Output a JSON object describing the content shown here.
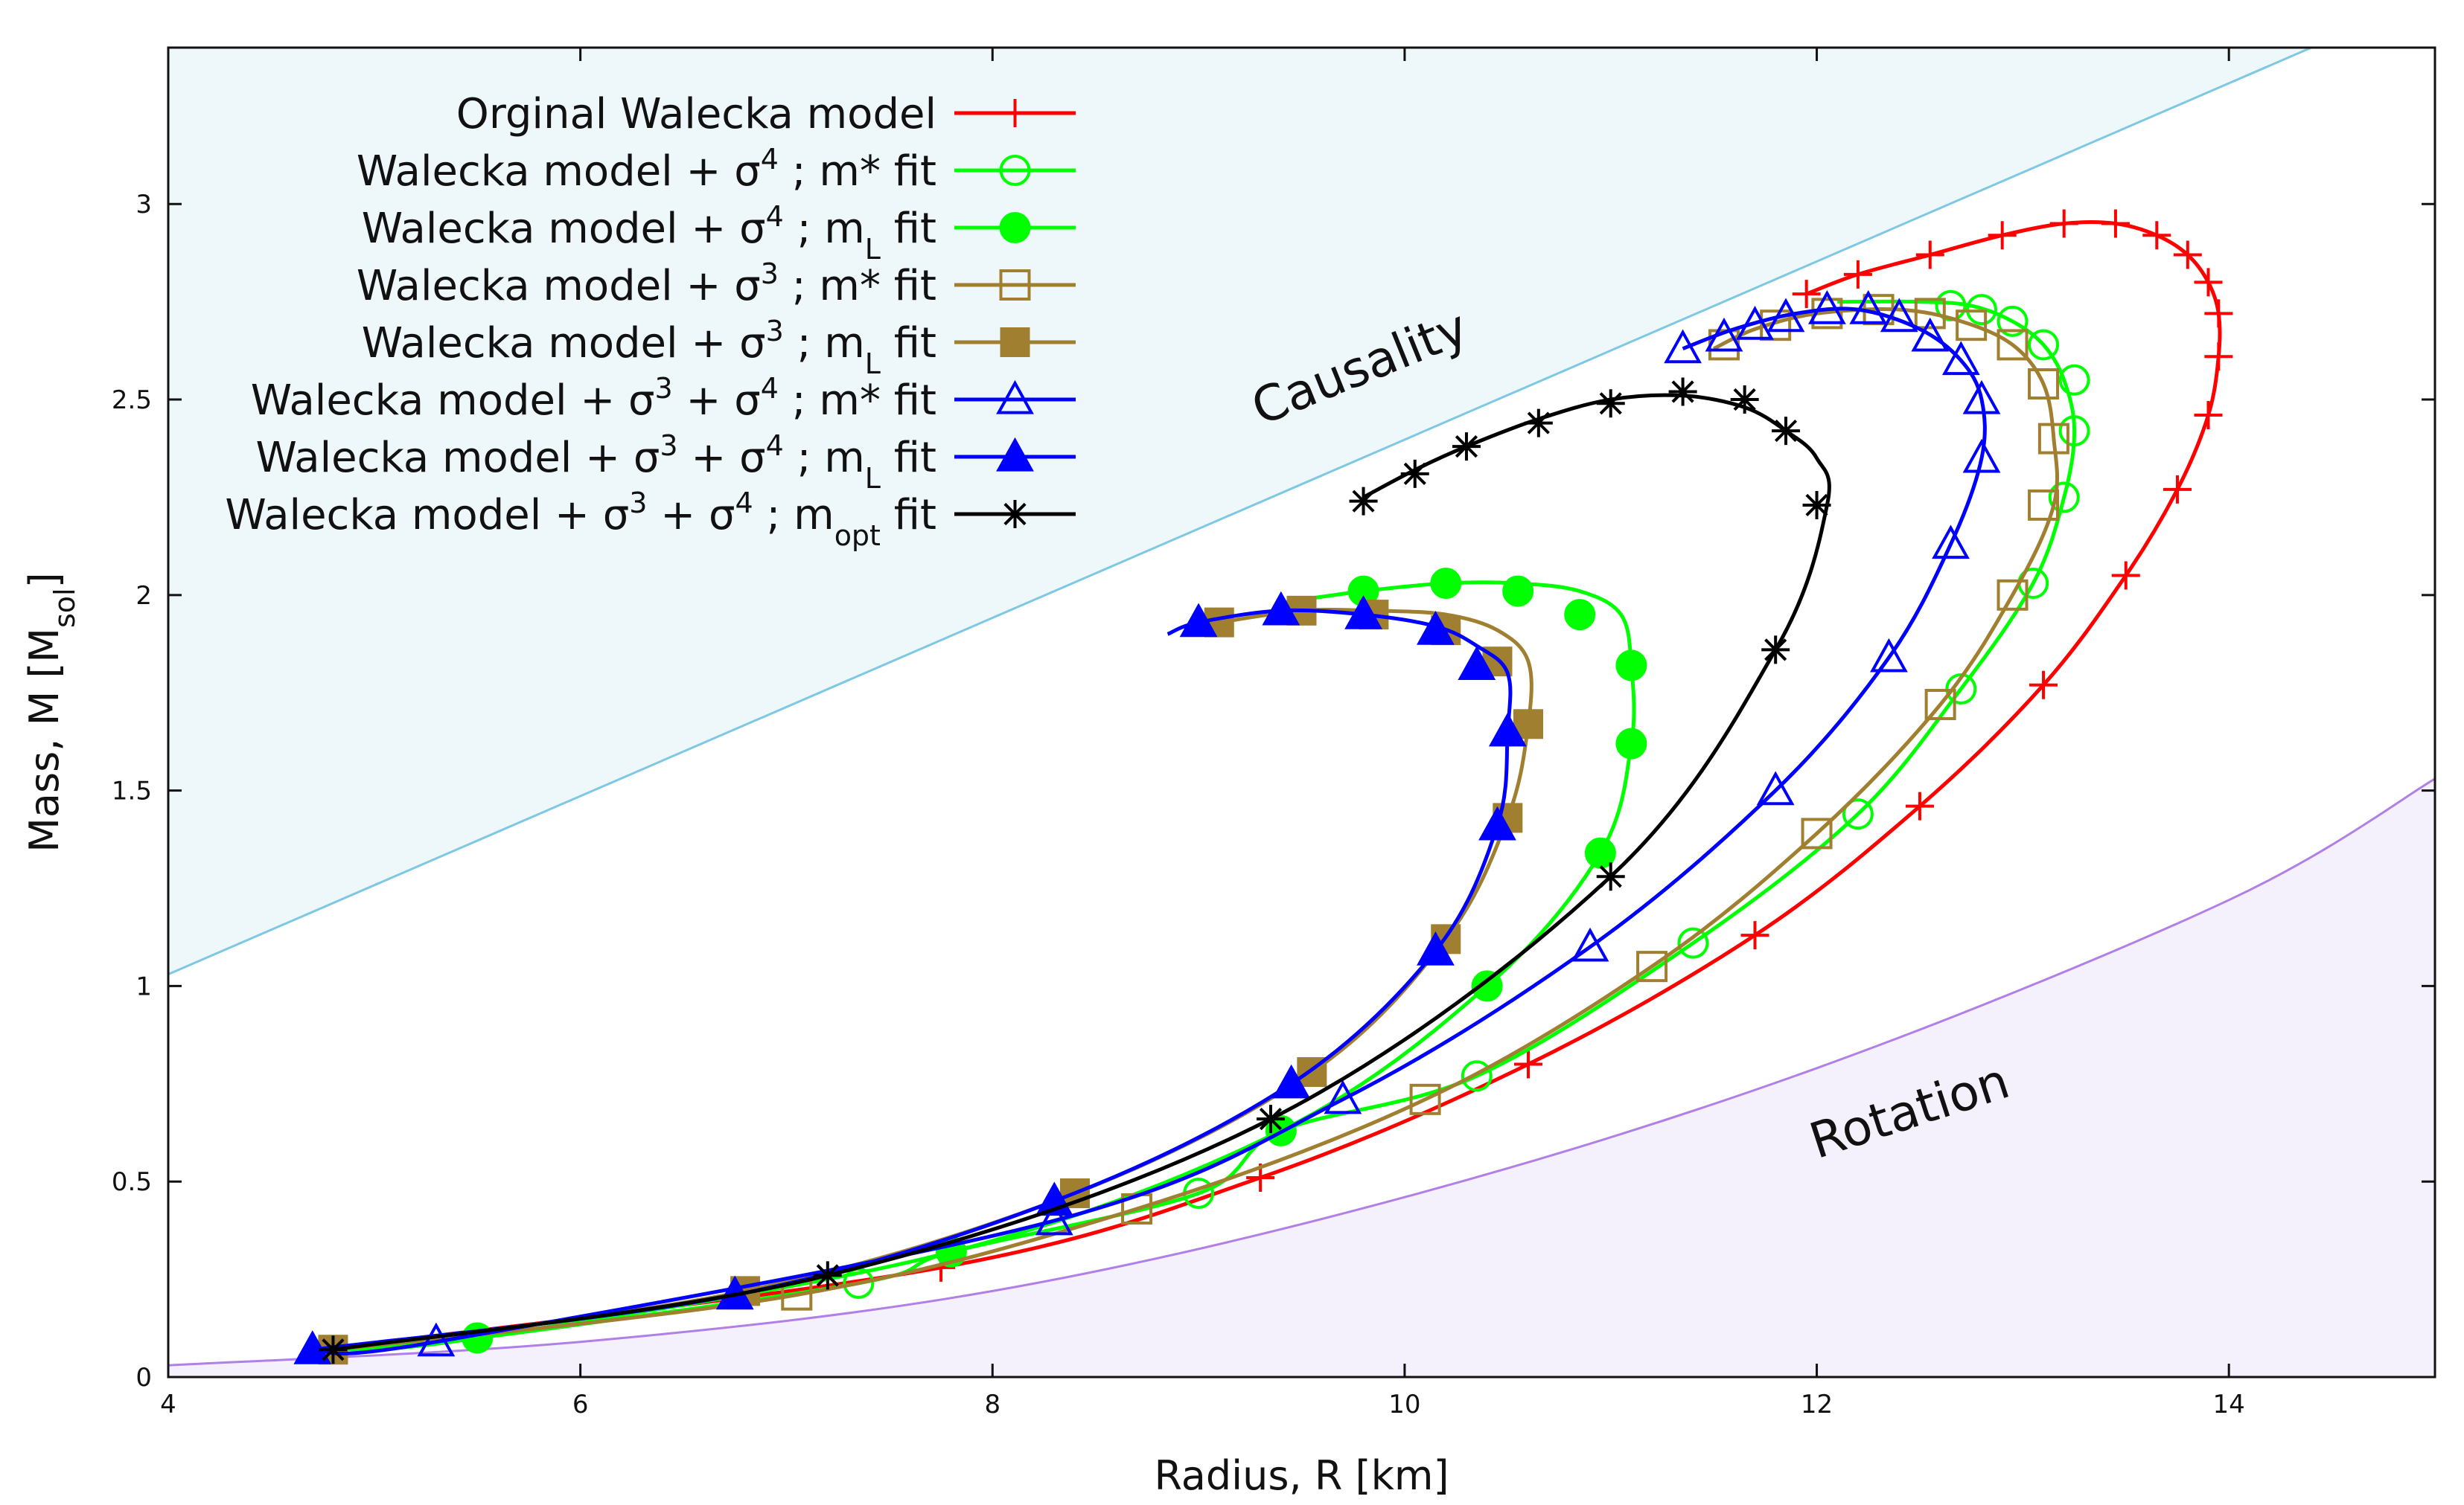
{
  "chart_data": {
    "type": "line",
    "xlabel": "Radius, R [km]",
    "ylabel_main": "Mass, M [M",
    "ylabel_sub": "sol",
    "ylabel_end": "]",
    "xlim": [
      4,
      15
    ],
    "ylim": [
      0,
      3.4
    ],
    "xticks": [
      4,
      6,
      8,
      10,
      12,
      14
    ],
    "yticks": [
      0,
      0.5,
      1,
      1.5,
      2,
      2.5,
      3
    ],
    "xtick_labels": [
      "4",
      "6",
      "8",
      "10",
      "12",
      "14"
    ],
    "ytick_labels": [
      "0",
      "0.5",
      "1",
      "1.5",
      "2",
      "2.5",
      "3"
    ],
    "grid": false,
    "legend_position": "top-left",
    "regions": [
      {
        "label": "Causality",
        "color": "#7ec8e3",
        "fill": "#eef8fb",
        "boundary": {
          "x": [
            4,
            14.4
          ],
          "y": [
            1.03,
            3.4
          ]
        }
      },
      {
        "label": "Rotation",
        "color": "#b07fe8",
        "fill": "#f4f0fc",
        "boundary": {
          "x": [
            4,
            6,
            8,
            10,
            12,
            14,
            15
          ],
          "y": [
            0.03,
            0.09,
            0.22,
            0.46,
            0.79,
            1.22,
            1.53
          ]
        }
      }
    ],
    "series": [
      {
        "name_parts": [
          "Orginal Walecka model"
        ],
        "color": "#ff0000",
        "marker": "plus",
        "x": [
          4.75,
          7.75,
          9.3,
          10.6,
          11.7,
          12.5,
          13.1,
          13.5,
          13.75,
          13.9,
          13.95,
          13.95,
          13.9,
          13.8,
          13.65,
          13.45,
          13.2,
          12.9,
          12.55,
          12.2,
          11.95
        ],
        "y": [
          0.07,
          0.28,
          0.51,
          0.8,
          1.13,
          1.46,
          1.77,
          2.05,
          2.27,
          2.46,
          2.61,
          2.72,
          2.8,
          2.87,
          2.92,
          2.95,
          2.95,
          2.92,
          2.87,
          2.82,
          2.77
        ]
      },
      {
        "name_parts": [
          "Walecka model + σ",
          "4",
          " ; m* fit"
        ],
        "color": "#00ff00",
        "marker": "circle-open",
        "x": [
          4.8,
          5.5,
          7.35,
          7.8,
          9.0,
          9.4,
          10.35,
          11.4,
          12.2,
          12.7,
          13.05,
          13.2,
          13.25,
          13.2,
          13.1,
          12.95,
          12.75,
          12.5,
          12.1
        ],
        "y": [
          0.07,
          0.1,
          0.24,
          0.32,
          0.47,
          0.63,
          0.77,
          1.11,
          1.44,
          1.76,
          2.03,
          2.25,
          2.42,
          2.55,
          2.64,
          2.7,
          2.74,
          2.75,
          2.75
        ],
        "markers_x": [
          7.35,
          9.0,
          10.35,
          11.4,
          12.2,
          12.7,
          13.05,
          13.2,
          13.25,
          13.25,
          13.1,
          12.95,
          12.8,
          12.65
        ],
        "markers_y": [
          0.24,
          0.47,
          0.77,
          1.11,
          1.44,
          1.76,
          2.03,
          2.25,
          2.42,
          2.55,
          2.64,
          2.7,
          2.73,
          2.74
        ]
      },
      {
        "name_parts": [
          "Walecka model + σ",
          "4",
          " ; m",
          "L",
          " fit"
        ],
        "color": "#00ff00",
        "marker": "circle-filled",
        "x": [
          4.8,
          5.5,
          7.8,
          9.4,
          10.4,
          10.95,
          11.1,
          11.1,
          11.05,
          10.85,
          10.55,
          10.2,
          9.8,
          9.4
        ],
        "y": [
          0.07,
          0.1,
          0.32,
          0.63,
          1.0,
          1.34,
          1.62,
          1.82,
          1.95,
          2.01,
          2.03,
          2.03,
          2.01,
          1.98
        ],
        "markers_x": [
          5.5,
          7.8,
          9.4,
          10.4,
          10.95,
          11.1,
          11.1,
          10.85,
          10.55,
          10.2,
          9.8
        ],
        "markers_y": [
          0.1,
          0.32,
          0.63,
          1.0,
          1.34,
          1.62,
          1.82,
          1.95,
          2.01,
          2.03,
          2.01
        ]
      },
      {
        "name_parts": [
          "Walecka model + σ",
          "3",
          " ; m* fit"
        ],
        "color": "#a08030",
        "marker": "square-open",
        "x": [
          4.8,
          7.05,
          8.7,
          10.1,
          11.2,
          12.0,
          12.6,
          12.95,
          13.15,
          13.15,
          13.1,
          12.95,
          12.7,
          12.4,
          12.0,
          11.7,
          11.5
        ],
        "y": [
          0.07,
          0.21,
          0.43,
          0.71,
          1.05,
          1.39,
          1.72,
          2.0,
          2.23,
          2.4,
          2.54,
          2.64,
          2.7,
          2.73,
          2.72,
          2.68,
          2.63
        ],
        "markers_x": [
          7.05,
          8.7,
          10.1,
          11.2,
          12.0,
          12.6,
          12.95,
          13.1,
          13.15,
          13.1,
          12.95,
          12.75,
          12.55,
          12.3,
          12.05,
          11.8,
          11.55
        ],
        "markers_y": [
          0.21,
          0.43,
          0.71,
          1.05,
          1.39,
          1.72,
          2.0,
          2.23,
          2.4,
          2.54,
          2.64,
          2.69,
          2.72,
          2.73,
          2.72,
          2.69,
          2.64
        ]
      },
      {
        "name_parts": [
          "Walecka model + σ",
          "3",
          " ; m",
          "L",
          " fit"
        ],
        "color": "#a08030",
        "marker": "square-filled",
        "x": [
          4.8,
          6.8,
          8.4,
          9.55,
          10.2,
          10.5,
          10.6,
          10.6,
          10.45,
          10.2,
          9.85,
          9.5,
          9.1
        ],
        "y": [
          0.07,
          0.22,
          0.47,
          0.78,
          1.12,
          1.43,
          1.67,
          1.83,
          1.91,
          1.95,
          1.96,
          1.96,
          1.93
        ],
        "markers_x": [
          4.8,
          6.8,
          8.4,
          9.55,
          10.2,
          10.5,
          10.6,
          10.45,
          10.2,
          9.85,
          9.5,
          9.1
        ],
        "markers_y": [
          0.07,
          0.22,
          0.47,
          0.78,
          1.12,
          1.43,
          1.67,
          1.83,
          1.91,
          1.95,
          1.96,
          1.93
        ]
      },
      {
        "name_parts": [
          "Walecka model + σ",
          "3",
          " + σ",
          "4",
          " ; m* fit"
        ],
        "color": "#0000ff",
        "marker": "triangle-open",
        "x": [
          4.7,
          5.3,
          8.3,
          9.7,
          10.9,
          11.8,
          12.35,
          12.65,
          12.8,
          12.8,
          12.7,
          12.5,
          12.2,
          11.9,
          11.6,
          11.35
        ],
        "y": [
          0.07,
          0.09,
          0.4,
          0.71,
          1.1,
          1.5,
          1.84,
          2.13,
          2.35,
          2.5,
          2.6,
          2.68,
          2.73,
          2.72,
          2.68,
          2.63
        ],
        "markers_x": [
          5.3,
          8.3,
          9.7,
          10.9,
          11.8,
          12.35,
          12.65,
          12.8,
          12.8,
          12.7,
          12.55,
          12.4,
          12.25,
          12.05,
          11.85,
          11.7,
          11.55,
          11.35
        ],
        "markers_y": [
          0.09,
          0.4,
          0.71,
          1.1,
          1.5,
          1.84,
          2.13,
          2.35,
          2.5,
          2.6,
          2.66,
          2.71,
          2.73,
          2.73,
          2.71,
          2.69,
          2.66,
          2.63
        ]
      },
      {
        "name_parts": [
          "Walecka model + σ",
          "3",
          " + σ",
          "4",
          " ; m",
          "L",
          " fit"
        ],
        "color": "#0000ff",
        "marker": "triangle-filled",
        "x": [
          4.7,
          6.75,
          8.3,
          9.45,
          10.15,
          10.45,
          10.5,
          10.5,
          10.35,
          10.15,
          9.8,
          9.4,
          9.0,
          8.85
        ],
        "y": [
          0.07,
          0.21,
          0.45,
          0.75,
          1.09,
          1.41,
          1.65,
          1.8,
          1.87,
          1.92,
          1.95,
          1.96,
          1.93,
          1.9
        ],
        "markers_x": [
          4.7,
          6.75,
          8.3,
          9.45,
          10.15,
          10.45,
          10.5,
          10.35,
          10.15,
          9.8,
          9.4,
          9.0
        ],
        "markers_y": [
          0.07,
          0.21,
          0.45,
          0.75,
          1.09,
          1.41,
          1.65,
          1.82,
          1.91,
          1.95,
          1.96,
          1.93
        ]
      },
      {
        "name_parts": [
          "Walecka model + σ",
          "3",
          " + σ",
          "4",
          " ; m",
          "opt",
          " fit"
        ],
        "color": "#000000",
        "marker": "asterisk",
        "x": [
          4.8,
          7.2,
          9.35,
          11.0,
          11.8,
          12.05,
          12.0,
          11.85,
          11.65,
          11.35,
          11.0,
          10.65,
          10.3,
          10.05,
          9.8
        ],
        "y": [
          0.07,
          0.26,
          0.66,
          1.28,
          1.86,
          2.23,
          2.35,
          2.42,
          2.48,
          2.51,
          2.5,
          2.45,
          2.38,
          2.32,
          2.25
        ],
        "markers_x": [
          4.8,
          7.2,
          9.35,
          11.0,
          11.8,
          12.0,
          11.85,
          11.65,
          11.35,
          11.0,
          10.65,
          10.3,
          10.05,
          9.8
        ],
        "markers_y": [
          0.07,
          0.26,
          0.66,
          1.28,
          1.86,
          2.23,
          2.42,
          2.5,
          2.52,
          2.49,
          2.44,
          2.38,
          2.31,
          2.24
        ]
      }
    ]
  }
}
